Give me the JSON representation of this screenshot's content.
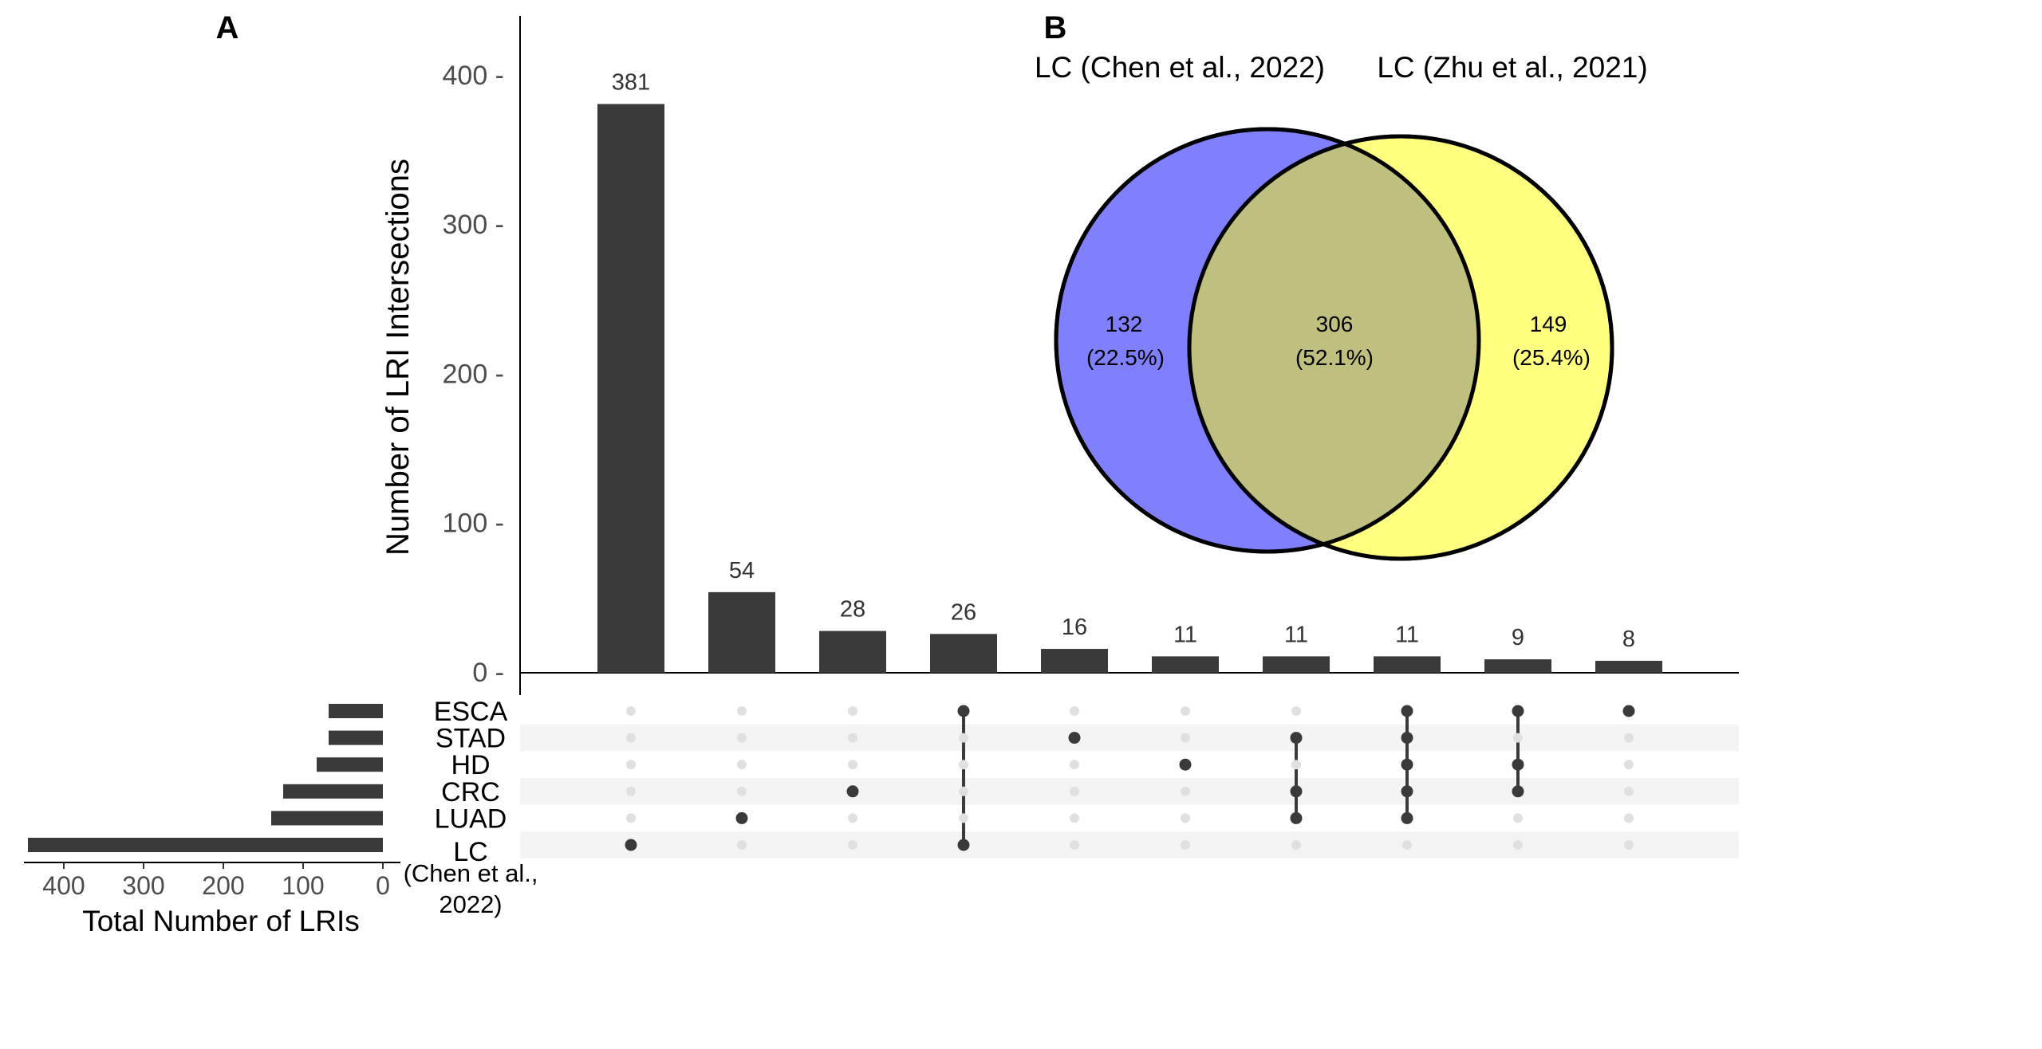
{
  "panels": {
    "a_label": "A",
    "b_label": "B"
  },
  "chart_data": [
    {
      "type": "bar",
      "panel": "A",
      "title": "",
      "ylabel": "Number of  LRI Intersections",
      "ylim": [
        0,
        440
      ],
      "yticks": [
        0,
        100,
        200,
        300,
        400
      ],
      "ytick_labels": [
        "0 -",
        "100 -",
        "200 -",
        "300 -",
        "400 -"
      ],
      "values": [
        381,
        54,
        28,
        26,
        16,
        11,
        11,
        11,
        9,
        8
      ],
      "value_labels": [
        "381",
        "54",
        "28",
        "26",
        "16",
        "11",
        "11",
        "11",
        "9",
        "8"
      ],
      "bar_color": "#3a3a3a",
      "sets": [
        {
          "name": "ESCA",
          "total": 68
        },
        {
          "name": "STAD",
          "total": 68
        },
        {
          "name": "HD",
          "total": 83
        },
        {
          "name": "CRC",
          "total": 125
        },
        {
          "name": "LUAD",
          "total": 140
        },
        {
          "name": "LC",
          "total": 445
        }
      ],
      "lc_note_line1": "(Chen et al.,",
      "lc_note_line2": "2022)",
      "matrix": [
        [
          5
        ],
        [
          4
        ],
        [
          3
        ],
        [
          0,
          5
        ],
        [
          1
        ],
        [
          2
        ],
        [
          1,
          3,
          4
        ],
        [
          0,
          1,
          2,
          3,
          4
        ],
        [
          0,
          2,
          3
        ],
        [
          0
        ]
      ],
      "set_size_xlabel": "Total Number of LRIs",
      "set_size_xlim": [
        0,
        450
      ],
      "set_size_ticks": [
        400,
        300,
        200,
        100,
        0
      ],
      "set_size_tick_labels": [
        "400",
        "300",
        "200",
        "100",
        "0"
      ]
    },
    {
      "type": "venn",
      "panel": "B",
      "sets": [
        {
          "name": "LC (Chen et al., 2022)",
          "only": "132",
          "pct": "(22.5%)",
          "color": "#8080ff"
        },
        {
          "name": "LC (Zhu et al., 2021)",
          "only": "149",
          "pct": "(25.4%)",
          "color": "#ffff80"
        }
      ],
      "overlap": {
        "value": "306",
        "pct": "(52.1%)",
        "color": "#bfbf80"
      }
    }
  ]
}
